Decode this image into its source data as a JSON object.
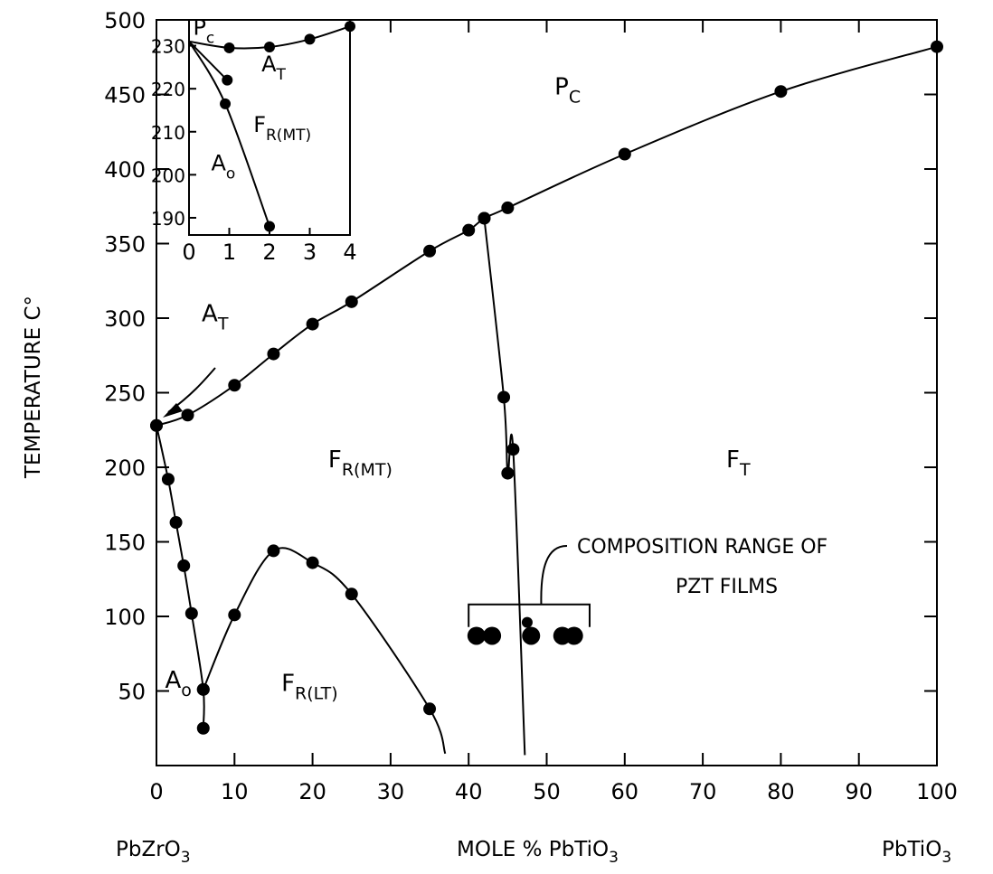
{
  "chart_data": [
    {
      "type": "scatter",
      "title": "",
      "xlabel": "MOLE % PbTiO3",
      "ylabel": "TEMPERATURE C°",
      "xlim": [
        0,
        100
      ],
      "ylim": [
        0,
        500
      ],
      "x_ticks": [
        0,
        10,
        20,
        30,
        40,
        50,
        60,
        70,
        80,
        90,
        100
      ],
      "y_ticks": [
        50,
        100,
        150,
        200,
        250,
        300,
        350,
        400,
        450,
        500
      ],
      "end_labels": {
        "left": "PbZrO",
        "left_sub": "3",
        "right": "PbTiO",
        "right_sub": "3"
      },
      "xlabel_parts": {
        "main": "MOLE % PbTiO",
        "sub": "3"
      },
      "ylabel_text": "TEMPERATURE C°",
      "series": [
        {
          "points": [
            [
              0,
              228
            ],
            [
              4,
              235
            ],
            [
              10,
              255
            ],
            [
              15,
              276
            ],
            [
              20,
              296
            ],
            [
              25,
              311
            ],
            [
              35,
              345
            ],
            [
              40,
              359
            ],
            [
              42,
              367
            ],
            [
              45,
              374
            ],
            [
              60,
              410
            ],
            [
              80,
              452
            ],
            [
              100,
              482
            ]
          ]
        },
        {
          "points": [
            [
              42,
              367
            ],
            [
              44.5,
              247
            ],
            [
              45,
              196
            ],
            [
              45.7,
              212
            ],
            [
              47.2,
              7
            ]
          ]
        },
        {
          "points": [
            [
              0,
              228
            ],
            [
              1.5,
              192
            ],
            [
              2.5,
              163
            ],
            [
              3.5,
              134
            ],
            [
              4.5,
              102
            ],
            [
              6,
              51
            ],
            [
              6,
              25
            ]
          ]
        },
        {
          "points": [
            [
              6,
              51
            ],
            [
              10,
              101
            ],
            [
              15,
              144
            ],
            [
              20,
              136
            ],
            [
              25,
              115
            ],
            [
              35,
              38
            ],
            [
              37,
              8
            ]
          ]
        },
        {
          "points": [
            [
              41,
              87
            ],
            [
              43,
              87
            ],
            [
              47.5,
              96
            ],
            [
              48,
              87
            ],
            [
              52,
              87
            ],
            [
              53.5,
              87
            ]
          ]
        }
      ],
      "regions": [
        {
          "main": "P",
          "sub": "C",
          "x": 51,
          "y": 450
        },
        {
          "main": "F",
          "sub": "R(MT)",
          "x": 22,
          "y": 200
        },
        {
          "main": "F",
          "sub": "T",
          "x": 73,
          "y": 200
        },
        {
          "main": "F",
          "sub": "R(LT)",
          "x": 16,
          "y": 50
        },
        {
          "main": "A",
          "sub": "o",
          "x": 1.1,
          "y": 52
        },
        {
          "main": "A",
          "sub": "T",
          "x": 5.8,
          "y": 298
        }
      ],
      "bracket": {
        "x_start": 40,
        "x_end": 55.5,
        "y": 108
      },
      "annotation": {
        "line1": "COMPOSITION RANGE OF",
        "line2": "PZT  FILMS"
      }
    },
    {
      "type": "scatter",
      "title": "",
      "xlim": [
        0,
        4
      ],
      "ylim": [
        186,
        236
      ],
      "x_ticks": [
        0,
        1,
        2,
        3,
        4
      ],
      "y_ticks": [
        190,
        200,
        210,
        220,
        230
      ],
      "series": [
        {
          "points": [
            [
              0,
              231
            ],
            [
              1,
              229.5
            ],
            [
              2,
              229.7
            ],
            [
              3,
              231.5
            ],
            [
              4,
              234.5
            ]
          ]
        },
        {
          "points": [
            [
              0,
              231
            ],
            [
              0.95,
              222
            ]
          ]
        },
        {
          "points": [
            [
              0,
              231
            ],
            [
              0.9,
              216.5
            ],
            [
              2,
              188
            ]
          ]
        }
      ],
      "regions": [
        {
          "main": "P",
          "sub": "c",
          "x": 0.1,
          "y": 232.5
        },
        {
          "main": "A",
          "sub": "T",
          "x": 1.8,
          "y": 224
        },
        {
          "main": "F",
          "sub": "R(MT)",
          "x": 1.6,
          "y": 210
        },
        {
          "main": "A",
          "sub": "o",
          "x": 0.55,
          "y": 201
        }
      ]
    }
  ]
}
